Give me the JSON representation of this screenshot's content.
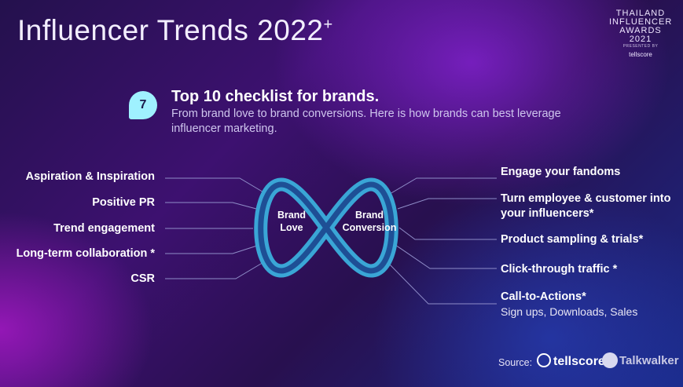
{
  "title": "Influencer Trends 2022",
  "title_suffix": "+",
  "award": {
    "line1": "THAILAND",
    "line2": "INFLUENCER",
    "line3": "AWARDS 2021",
    "presented": "PRESENTED BY",
    "logo": "tellscore"
  },
  "checklist": {
    "number": "7",
    "heading": "Top 10 checklist for brands.",
    "subtitle": "From brand love to brand conversions. Here is how brands can best leverage influencer marketing."
  },
  "loop": {
    "left_label_line1": "Brand",
    "left_label_line2": "Love",
    "right_label_line1": "Brand",
    "right_label_line2": "Conversion"
  },
  "left_items": [
    "Aspiration & Inspiration",
    "Positive PR",
    "Trend engagement",
    "Long-term collaboration *",
    "CSR"
  ],
  "right_items": [
    {
      "line1": "Engage your fandoms",
      "line2": ""
    },
    {
      "line1": "Turn employee & customer into",
      "line2": "your influencers*"
    },
    {
      "line1": "Product sampling & trials*",
      "line2": ""
    },
    {
      "line1": "Click-through traffic *",
      "line2": ""
    },
    {
      "line1": "Call-to-Actions*",
      "line2": "Sign ups, Downloads, Sales"
    }
  ],
  "source": {
    "label": "Source:",
    "logo1": "tellscore",
    "logo2": "Talkwalker"
  },
  "colors": {
    "loop_outer": "#3aa6d6",
    "loop_inner": "#1e4f95",
    "connector": "#8f8dc8",
    "badge": "#9ff1ff"
  }
}
